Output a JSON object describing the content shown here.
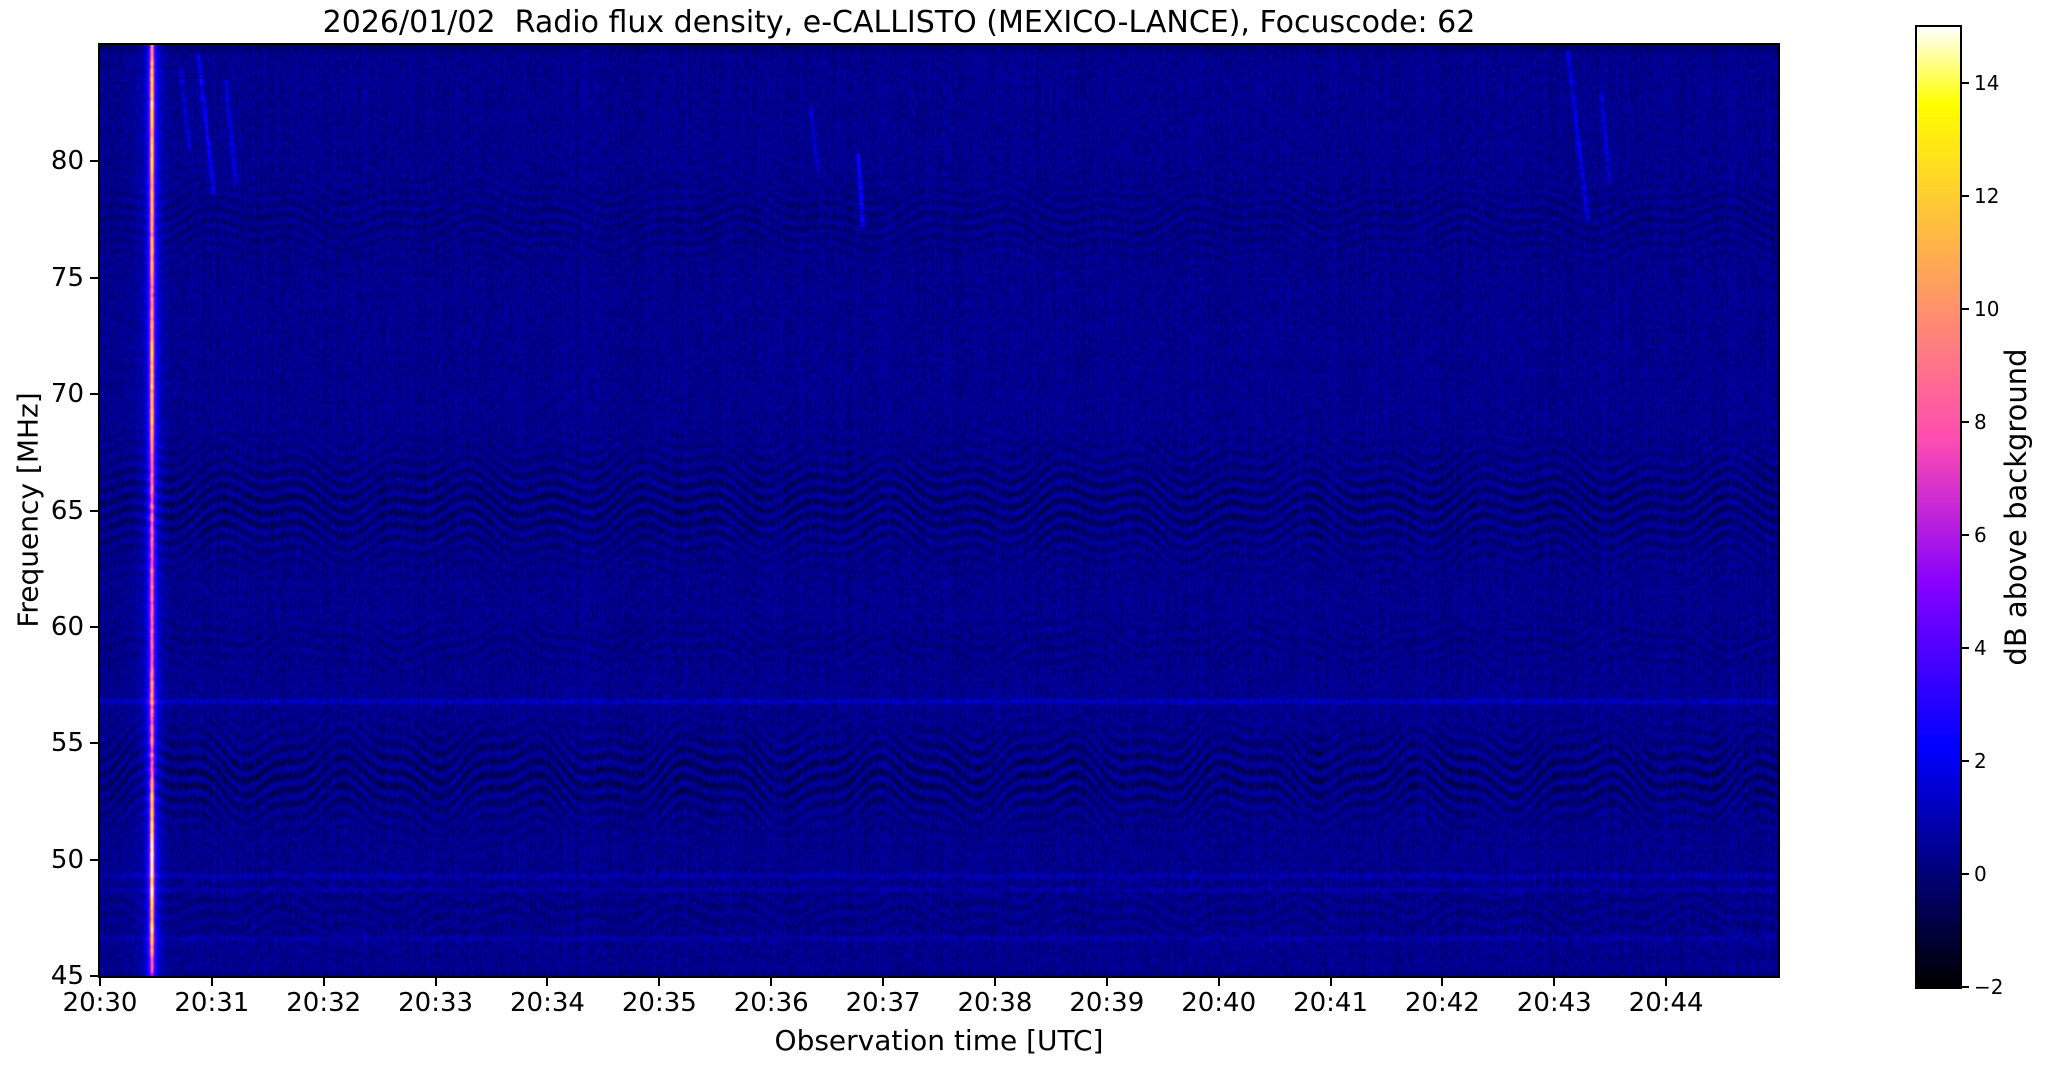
{
  "chart_data": {
    "type": "heatmap",
    "title": "2026/01/02  Radio flux density, e-CALLISTO (MEXICO-LANCE), Focuscode: 62",
    "xlabel": "Observation time [UTC]",
    "ylabel": "Frequency [MHz]",
    "x_tick_labels": [
      "20:30",
      "20:31",
      "20:32",
      "20:33",
      "20:34",
      "20:35",
      "20:36",
      "20:37",
      "20:38",
      "20:39",
      "20:40",
      "20:41",
      "20:42",
      "20:43",
      "20:44"
    ],
    "x_range": {
      "start_utc": "20:30",
      "end_utc": "20:45",
      "minutes": 15
    },
    "y_tick_values": [
      80,
      75,
      70,
      65,
      60,
      55,
      50,
      45
    ],
    "ylim": [
      45,
      85
    ],
    "grid": false,
    "legend": "none",
    "colorbar": {
      "label": "dB above background",
      "tick_labels": [
        "14",
        "12",
        "10",
        "8",
        "6",
        "4",
        "2",
        "0",
        "−2"
      ],
      "tick_values": [
        14,
        12,
        10,
        8,
        6,
        4,
        2,
        0,
        -2
      ],
      "vmin": -2,
      "vmax": 15,
      "colormap": "gnuplot2",
      "position": "right"
    },
    "background_db": 0.4,
    "features": {
      "burst": {
        "time_minutes": 0.465,
        "time_utc": "20:30:28",
        "core_sigma_minutes": 0.0155,
        "glow_sigma_minutes": 0.045,
        "halo_sigma_minutes": 0.11,
        "glow_db": 2.8,
        "halo_db": 0.9,
        "profile": [
          [
            84.9,
            7
          ],
          [
            83.5,
            9.5
          ],
          [
            82,
            10.5
          ],
          [
            81,
            9
          ],
          [
            80,
            10.5
          ],
          [
            79,
            8.5
          ],
          [
            78,
            9.5
          ],
          [
            77,
            7.5
          ],
          [
            76,
            8.5
          ],
          [
            75,
            7
          ],
          [
            74,
            6.5
          ],
          [
            73,
            8
          ],
          [
            72,
            9.5
          ],
          [
            71,
            9
          ],
          [
            70.5,
            10
          ],
          [
            70,
            8.5
          ],
          [
            69,
            9.5
          ],
          [
            68,
            7
          ],
          [
            67,
            6
          ],
          [
            66,
            6.5
          ],
          [
            65,
            5.5
          ],
          [
            64,
            6
          ],
          [
            63,
            5
          ],
          [
            62,
            5.5
          ],
          [
            61,
            5
          ],
          [
            60,
            5.5
          ],
          [
            59,
            5
          ],
          [
            58,
            6.5
          ],
          [
            57,
            7.5
          ],
          [
            56.5,
            6
          ],
          [
            56,
            5.5
          ],
          [
            55,
            6
          ],
          [
            54,
            5.5
          ],
          [
            53.5,
            7
          ],
          [
            53,
            9
          ],
          [
            52.5,
            10.5
          ],
          [
            52,
            9.5
          ],
          [
            51.5,
            11
          ],
          [
            51,
            10
          ],
          [
            50.5,
            12
          ],
          [
            50.2,
            13.5
          ],
          [
            49.8,
            11
          ],
          [
            49.4,
            12.5
          ],
          [
            49,
            10.5
          ],
          [
            48.6,
            13
          ],
          [
            48.2,
            11
          ],
          [
            47.8,
            10
          ],
          [
            47.4,
            9.5
          ],
          [
            47,
            10.5
          ],
          [
            46.5,
            9
          ],
          [
            46,
            7.5
          ],
          [
            45.5,
            5
          ],
          [
            45,
            3.5
          ]
        ]
      },
      "interference_bands": [
        {
          "center_mhz": 65.2,
          "sigma_mhz": 2.3,
          "amp_db": 0.55,
          "stripe_spacing_mhz": 0.55,
          "wave": [
            {
              "amp_mhz": 0.55,
              "period_min": 1.9,
              "phase": 0.5
            },
            {
              "amp_mhz": 0.35,
              "period_min": 0.75,
              "phase": 2.1
            }
          ]
        },
        {
          "center_mhz": 53.6,
          "sigma_mhz": 1.9,
          "amp_db": 0.6,
          "stripe_spacing_mhz": 0.6,
          "wave": [
            {
              "amp_mhz": 0.85,
              "period_min": 1.6,
              "phase": 2.4
            },
            {
              "amp_mhz": 0.3,
              "period_min": 0.6,
              "phase": 0.9
            }
          ]
        },
        {
          "center_mhz": 77.5,
          "sigma_mhz": 1.6,
          "amp_db": 0.28,
          "stripe_spacing_mhz": 0.5,
          "wave": [
            {
              "amp_mhz": 0.5,
              "period_min": 2.2,
              "phase": 1.2
            },
            {
              "amp_mhz": 0.25,
              "period_min": 0.8,
              "phase": 3.5
            }
          ]
        },
        {
          "center_mhz": 59.3,
          "sigma_mhz": 1.0,
          "amp_db": 0.2,
          "stripe_spacing_mhz": 0.55,
          "wave": [
            {
              "amp_mhz": 0.6,
              "period_min": 1.7,
              "phase": 4.0
            },
            {
              "amp_mhz": 0.2,
              "period_min": 0.66,
              "phase": 1.5
            }
          ]
        },
        {
          "center_mhz": 47.8,
          "sigma_mhz": 1.4,
          "amp_db": 0.22,
          "stripe_spacing_mhz": 0.6,
          "wave": [
            {
              "amp_mhz": 0.5,
              "period_min": 1.8,
              "phase": 5.2
            },
            {
              "amp_mhz": 0.25,
              "period_min": 0.7,
              "phase": 2.8
            }
          ]
        }
      ],
      "horizontal_lines": [
        {
          "freq_mhz": 56.8,
          "amp_db": 0.9,
          "sigma_mhz": 0.12
        },
        {
          "freq_mhz": 49.3,
          "amp_db": 0.7,
          "sigma_mhz": 0.1
        },
        {
          "freq_mhz": 48.7,
          "amp_db": 0.45,
          "sigma_mhz": 0.1
        },
        {
          "freq_mhz": 46.6,
          "amp_db": 0.5,
          "sigma_mhz": 0.12
        }
      ],
      "faint_streaks": [
        {
          "t0_min": 0.88,
          "f0_mhz": 84.6,
          "t1_min": 1.02,
          "f1_mhz": 78.5,
          "amp_db": 2.2
        },
        {
          "t0_min": 0.72,
          "f0_mhz": 84.0,
          "t1_min": 0.8,
          "f1_mhz": 80.5,
          "amp_db": 1.4
        },
        {
          "t0_min": 1.12,
          "f0_mhz": 83.5,
          "t1_min": 1.22,
          "f1_mhz": 79.0,
          "amp_db": 1.5
        },
        {
          "t0_min": 6.78,
          "f0_mhz": 80.3,
          "t1_min": 6.82,
          "f1_mhz": 77.2,
          "amp_db": 2.4
        },
        {
          "t0_min": 6.35,
          "f0_mhz": 82.5,
          "t1_min": 6.42,
          "f1_mhz": 79.5,
          "amp_db": 1.2
        },
        {
          "t0_min": 13.12,
          "f0_mhz": 84.8,
          "t1_min": 13.3,
          "f1_mhz": 77.5,
          "amp_db": 1.8
        },
        {
          "t0_min": 13.42,
          "f0_mhz": 83.0,
          "t1_min": 13.5,
          "f1_mhz": 79.0,
          "amp_db": 1.3
        }
      ]
    }
  }
}
